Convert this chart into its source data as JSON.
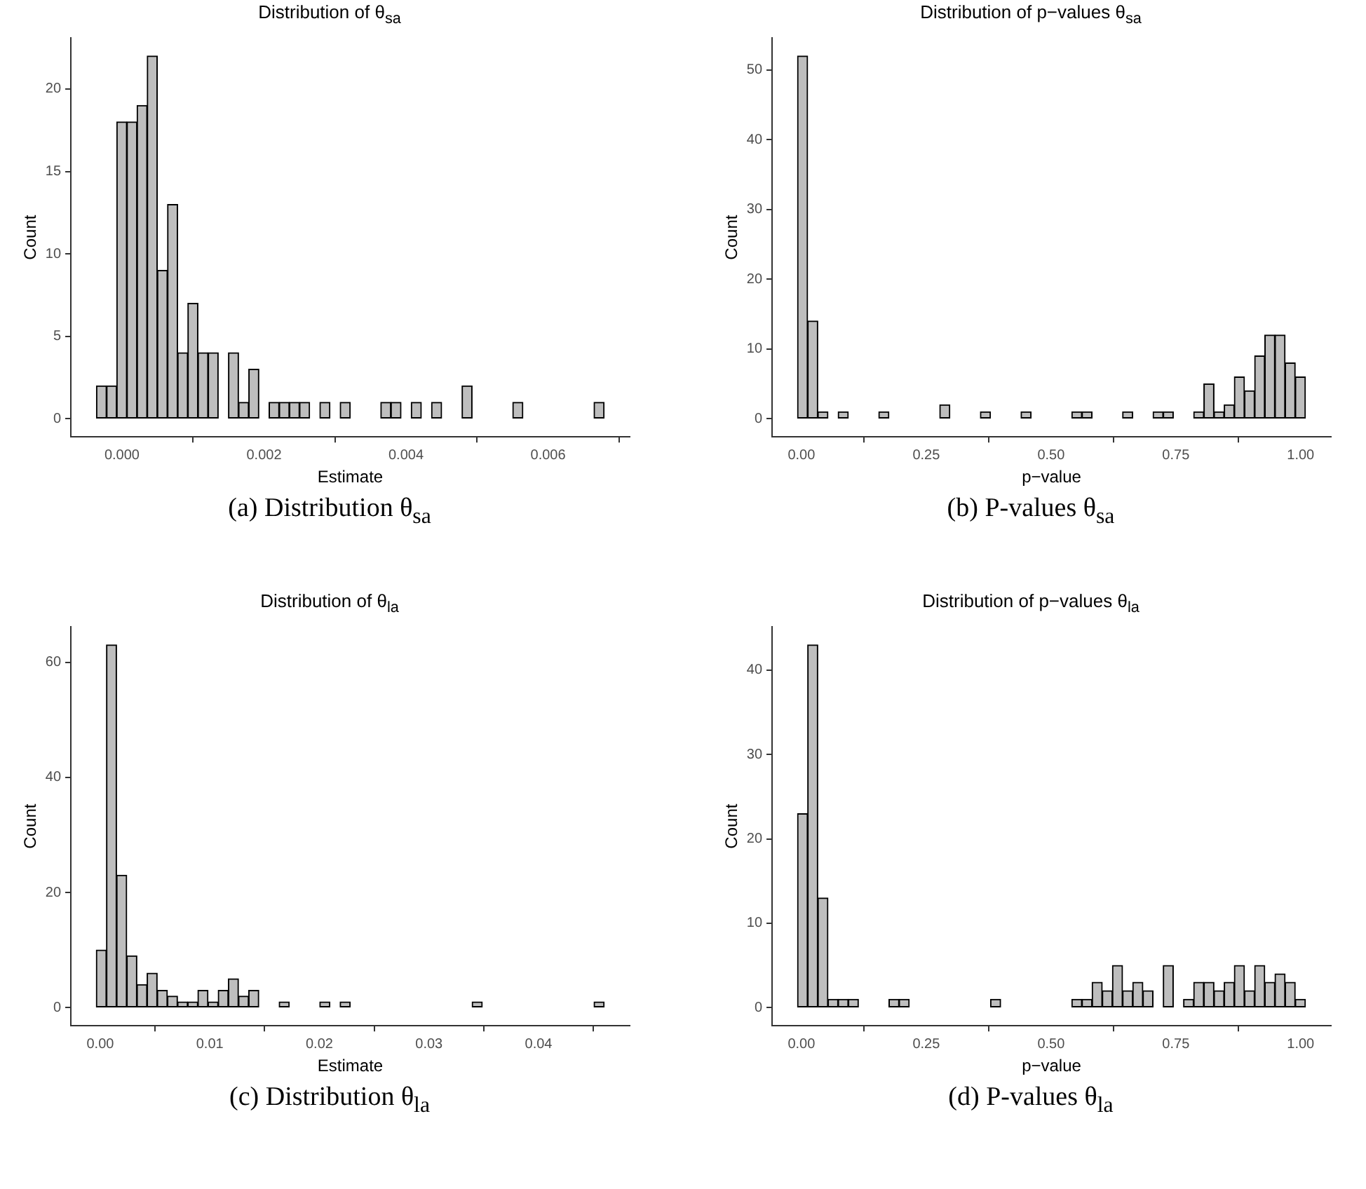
{
  "chart_data": [
    {
      "type": "histogram",
      "title": "Distribution of θ$_{sa}$",
      "xlabel": "Estimate",
      "ylabel": "Count",
      "color": "#bebebe",
      "bins": [
        -0.00036,
        -0.000217,
        -7.4e-05,
        6.9e-05,
        0.000212,
        0.000355,
        0.000498,
        0.000641,
        0.000784,
        0.000927,
        0.00107,
        0.001213,
        0.001356,
        0.001499,
        0.001642,
        0.001785,
        0.001928,
        0.002071,
        0.002214,
        0.002357,
        0.0025,
        0.002643,
        0.002786,
        0.002929,
        0.003072,
        0.003215,
        0.003358,
        0.003501,
        0.003644,
        0.003787,
        0.00393,
        0.004073,
        0.004216,
        0.004359,
        0.004502,
        0.004645,
        0.004788,
        0.004931,
        0.005074,
        0.005217,
        0.00536,
        0.005503,
        0.005646,
        0.005789,
        0.005932,
        0.006075,
        0.006218,
        0.006361,
        0.006504,
        0.006647,
        0.00679
      ],
      "values": [
        2,
        2,
        18,
        18,
        19,
        22,
        9,
        13,
        4,
        7,
        4,
        4,
        0,
        4,
        1,
        3,
        0,
        1,
        1,
        1,
        1,
        0,
        1,
        0,
        1,
        0,
        0,
        0,
        1,
        1,
        0,
        1,
        0,
        1,
        0,
        0,
        2,
        0,
        0,
        0,
        0,
        1,
        0,
        0,
        0,
        0,
        0,
        0,
        0,
        1
      ],
      "xlim": [
        -0.00072,
        0.00715
      ],
      "xticks": [
        {
          "value": 0,
          "label": "0.000"
        },
        {
          "value": 0.002,
          "label": "0.002"
        },
        {
          "value": 0.004,
          "label": "0.004"
        },
        {
          "value": 0.006,
          "label": "0.006"
        }
      ],
      "ylim": [
        -1.1,
        23.1
      ],
      "yticks": [
        0,
        5,
        10,
        15,
        20
      ],
      "annotations": [
        "(a) Distribution θ$_{sa}$"
      ]
    },
    {
      "type": "histogram",
      "title": "Distribution of p−values θ$_{sa}$",
      "xlabel": "p−value",
      "ylabel": "Count",
      "color": "#bebebe",
      "bins": [
        -0.0079,
        0.01245,
        0.0328,
        0.05315,
        0.0735,
        0.09385,
        0.1142,
        0.13455,
        0.1549,
        0.17525,
        0.1956,
        0.21595,
        0.2363,
        0.25665,
        0.277,
        0.29735,
        0.3177,
        0.33805,
        0.3584,
        0.37875,
        0.3991,
        0.41945,
        0.4398,
        0.46015,
        0.4805,
        0.50085,
        0.5212,
        0.54155,
        0.5619,
        0.58225,
        0.6026,
        0.62295,
        0.6433,
        0.66365,
        0.684,
        0.70435,
        0.7247,
        0.74505,
        0.7654,
        0.78575,
        0.8061,
        0.82645,
        0.8468,
        0.86715,
        0.8875,
        0.90785,
        0.9282,
        0.94855,
        0.9689,
        0.98925,
        1.0096
      ],
      "values": [
        52,
        14,
        1,
        0,
        1,
        0,
        0,
        0,
        1,
        0,
        0,
        0,
        0,
        0,
        2,
        0,
        0,
        0,
        1,
        0,
        0,
        0,
        1,
        0,
        0,
        0,
        0,
        1,
        1,
        0,
        0,
        0,
        1,
        0,
        0,
        1,
        1,
        0,
        0,
        1,
        5,
        1,
        2,
        6,
        4,
        9,
        12,
        12,
        8,
        6
      ],
      "xlim": [
        -0.0588,
        1.0607
      ],
      "xticks": [
        {
          "value": 0,
          "label": "0.00"
        },
        0.25,
        {
          "value": 0.5,
          "label": "0.50"
        },
        0.75,
        {
          "value": 1,
          "label": "1.00"
        }
      ],
      "ylim": [
        -2.6,
        54.6
      ],
      "yticks": [
        0,
        10,
        20,
        30,
        40,
        50
      ],
      "annotations": [
        "(b) P-values θ$_{sa}$"
      ]
    },
    {
      "type": "histogram",
      "title": "Distribution of θ$_{la}$",
      "xlabel": "Estimate",
      "ylabel": "Count",
      "color": "#bebebe",
      "bins": [
        -0.00036,
        0.000567,
        0.001494,
        0.002421,
        0.003348,
        0.004275,
        0.005202,
        0.006129,
        0.007056,
        0.007983,
        0.00891,
        0.009837,
        0.010764,
        0.011691,
        0.012618,
        0.013545,
        0.014472,
        0.015399,
        0.016326,
        0.017253,
        0.01818,
        0.019107,
        0.020034,
        0.020961,
        0.021888,
        0.022815,
        0.023742,
        0.024669,
        0.025596,
        0.026523,
        0.02745,
        0.028377,
        0.029304,
        0.030231,
        0.031158,
        0.032085,
        0.033012,
        0.033939,
        0.034866,
        0.035793,
        0.03672,
        0.037647,
        0.038574,
        0.039501,
        0.040428,
        0.041355,
        0.042282,
        0.043209,
        0.044136,
        0.045063,
        0.04599
      ],
      "values": [
        10,
        63,
        23,
        9,
        4,
        6,
        3,
        2,
        1,
        1,
        3,
        1,
        3,
        5,
        2,
        3,
        0,
        0,
        1,
        0,
        0,
        0,
        1,
        0,
        1,
        0,
        0,
        0,
        0,
        0,
        0,
        0,
        0,
        0,
        0,
        0,
        0,
        1,
        0,
        0,
        0,
        0,
        0,
        0,
        0,
        0,
        0,
        0,
        0,
        1
      ],
      "xlim": [
        -0.00268,
        0.04832
      ],
      "xticks": [
        {
          "value": 0,
          "label": "0.00"
        },
        0.01,
        0.02,
        0.03,
        0.04
      ],
      "ylim": [
        -3.15,
        66.15
      ],
      "yticks": [
        0,
        20,
        40,
        60
      ],
      "annotations": [
        "(c) Distribution θ$_{la}$"
      ]
    },
    {
      "type": "histogram",
      "title": "Distribution of p−values θ$_{la}$",
      "xlabel": "p−value",
      "ylabel": "Count",
      "color": "#bebebe",
      "bins": [
        -0.0079,
        0.01245,
        0.0328,
        0.05315,
        0.0735,
        0.09385,
        0.1142,
        0.13455,
        0.1549,
        0.17525,
        0.1956,
        0.21595,
        0.2363,
        0.25665,
        0.277,
        0.29735,
        0.3177,
        0.33805,
        0.3584,
        0.37875,
        0.3991,
        0.41945,
        0.4398,
        0.46015,
        0.4805,
        0.50085,
        0.5212,
        0.54155,
        0.5619,
        0.58225,
        0.6026,
        0.62295,
        0.6433,
        0.66365,
        0.684,
        0.70435,
        0.7247,
        0.74505,
        0.7654,
        0.78575,
        0.8061,
        0.82645,
        0.8468,
        0.86715,
        0.8875,
        0.90785,
        0.9282,
        0.94855,
        0.9689,
        0.98925,
        1.0096
      ],
      "values": [
        23,
        43,
        13,
        1,
        1,
        1,
        0,
        0,
        0,
        1,
        1,
        0,
        0,
        0,
        0,
        0,
        0,
        0,
        0,
        1,
        0,
        0,
        0,
        0,
        0,
        0,
        0,
        1,
        1,
        3,
        2,
        5,
        2,
        3,
        2,
        0,
        5,
        0,
        1,
        3,
        3,
        2,
        3,
        5,
        2,
        5,
        3,
        4,
        3,
        1
      ],
      "xlim": [
        -0.0588,
        1.0607
      ],
      "xticks": [
        {
          "value": 0,
          "label": "0.00"
        },
        0.25,
        {
          "value": 0.5,
          "label": "0.50"
        },
        0.75,
        {
          "value": 1,
          "label": "1.00"
        }
      ],
      "ylim": [
        -2.15,
        45.15
      ],
      "yticks": [
        0,
        10,
        20,
        30,
        40
      ],
      "annotations": [
        "(d) P-values θ$_{la}$"
      ]
    }
  ]
}
